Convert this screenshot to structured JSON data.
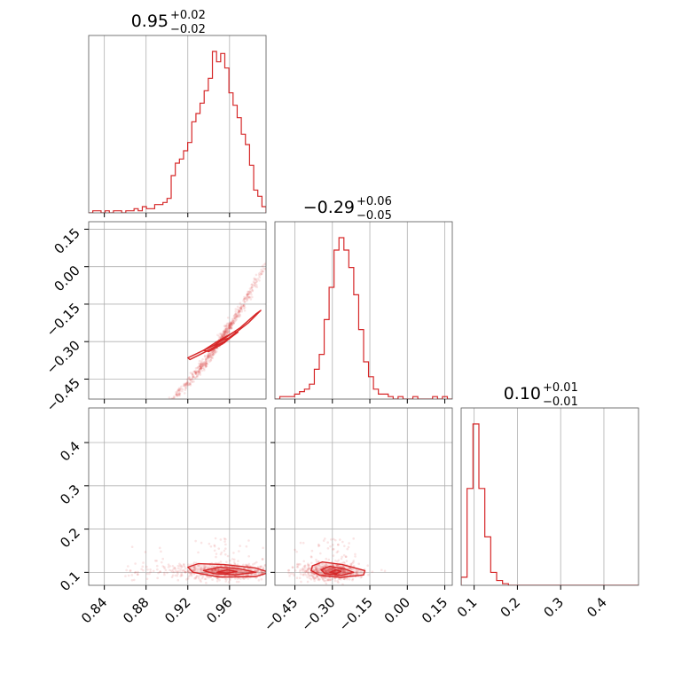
{
  "chart_data": {
    "type": "corner",
    "color": "#d62728",
    "grid": true,
    "parameters": [
      {
        "title": {
          "median": "0.95",
          "plus": "+0.02",
          "minus": "−0.02"
        },
        "range": [
          0.825,
          0.995
        ],
        "ticks": [
          0.84,
          0.88,
          0.92,
          0.96
        ],
        "tick_labels": [
          "0.84",
          "0.88",
          "0.92",
          "0.96"
        ]
      },
      {
        "title": {
          "median": "−0.29",
          "plus": "+0.06",
          "minus": "−0.05"
        },
        "range": [
          -0.53,
          0.18
        ],
        "ticks": [
          -0.45,
          -0.3,
          -0.15,
          0.0,
          0.15
        ],
        "tick_labels": [
          "−0.45",
          "−0.30",
          "−0.15",
          "0.00",
          "0.15"
        ]
      },
      {
        "title": {
          "median": "0.10",
          "plus": "+0.01",
          "minus": "−0.01"
        },
        "range": [
          0.07,
          0.48
        ],
        "ticks": [
          0.1,
          0.2,
          0.3,
          0.4
        ],
        "tick_labels": [
          "0.1",
          "0.2",
          "0.3",
          "0.4"
        ]
      }
    ],
    "histograms": [
      {
        "param": 0,
        "bins": [
          0.825,
          0.995
        ],
        "counts": [
          0,
          1,
          1,
          0,
          1,
          0,
          1,
          1,
          0,
          1,
          1,
          2,
          1,
          3,
          2,
          2,
          4,
          4,
          5,
          7,
          18,
          24,
          26,
          30,
          34,
          44,
          48,
          53,
          59,
          65,
          78,
          73,
          77,
          70,
          58,
          52,
          46,
          38,
          33,
          23,
          11,
          8,
          3
        ]
      },
      {
        "param": 1,
        "bins": [
          -0.53,
          0.18
        ],
        "counts": [
          0,
          1,
          1,
          1,
          2,
          3,
          4,
          6,
          12,
          18,
          32,
          45,
          60,
          65,
          60,
          53,
          42,
          28,
          15,
          9,
          4,
          2,
          2,
          1,
          0,
          1,
          0,
          0,
          1,
          0,
          0,
          0,
          1,
          0,
          1,
          0
        ]
      },
      {
        "param": 2,
        "bins": [
          0.07,
          0.48
        ],
        "counts": [
          5,
          60,
          100,
          60,
          30,
          8,
          3,
          1,
          0,
          0,
          0,
          0,
          0,
          0,
          0,
          0,
          0,
          0,
          0,
          0,
          0,
          0,
          0,
          0,
          0,
          0,
          0,
          0,
          0,
          0
        ]
      }
    ],
    "pairs": [
      {
        "x_param": 0,
        "y_param": 1,
        "center": [
          0.949,
          -0.31
        ],
        "contours": [
          {
            "level": 1,
            "points": [
              [
                0.945,
                -0.315
              ],
              [
                0.952,
                -0.295
              ],
              [
                0.96,
                -0.285
              ],
              [
                0.955,
                -0.305
              ]
            ]
          },
          {
            "level": 2,
            "points": [
              [
                0.935,
                -0.335
              ],
              [
                0.948,
                -0.3
              ],
              [
                0.965,
                -0.26
              ],
              [
                0.968,
                -0.262
              ],
              [
                0.953,
                -0.31
              ],
              [
                0.94,
                -0.34
              ]
            ]
          },
          {
            "level": 3,
            "points": [
              [
                0.92,
                -0.365
              ],
              [
                0.945,
                -0.315
              ],
              [
                0.97,
                -0.245
              ],
              [
                0.985,
                -0.19
              ],
              [
                0.99,
                -0.175
              ],
              [
                0.978,
                -0.225
              ],
              [
                0.955,
                -0.3
              ],
              [
                0.935,
                -0.345
              ],
              [
                0.922,
                -0.372
              ]
            ]
          }
        ]
      },
      {
        "x_param": 0,
        "y_param": 2,
        "center": [
          0.955,
          0.101
        ],
        "contours": [
          {
            "level": 1,
            "points": [
              [
                0.948,
                0.1
              ],
              [
                0.958,
                0.106
              ],
              [
                0.967,
                0.102
              ],
              [
                0.958,
                0.098
              ]
            ]
          },
          {
            "level": 2,
            "points": [
              [
                0.935,
                0.104
              ],
              [
                0.95,
                0.112
              ],
              [
                0.97,
                0.108
              ],
              [
                0.985,
                0.1
              ],
              [
                0.965,
                0.094
              ],
              [
                0.945,
                0.097
              ]
            ]
          },
          {
            "level": 3,
            "points": [
              [
                0.92,
                0.112
              ],
              [
                0.93,
                0.12
              ],
              [
                0.955,
                0.118
              ],
              [
                0.985,
                0.11
              ],
              [
                0.998,
                0.1
              ],
              [
                0.985,
                0.09
              ],
              [
                0.95,
                0.089
              ],
              [
                0.925,
                0.1
              ]
            ]
          }
        ]
      },
      {
        "x_param": 1,
        "y_param": 2,
        "center": [
          -0.29,
          0.101
        ],
        "contours": [
          {
            "level": 1,
            "points": [
              [
                -0.31,
                0.1
              ],
              [
                -0.285,
                0.106
              ],
              [
                -0.265,
                0.102
              ],
              [
                -0.285,
                0.097
              ]
            ]
          },
          {
            "level": 2,
            "points": [
              [
                -0.345,
                0.106
              ],
              [
                -0.31,
                0.114
              ],
              [
                -0.25,
                0.108
              ],
              [
                -0.215,
                0.1
              ],
              [
                -0.265,
                0.093
              ],
              [
                -0.33,
                0.097
              ]
            ]
          },
          {
            "level": 3,
            "points": [
              [
                -0.38,
                0.115
              ],
              [
                -0.34,
                0.124
              ],
              [
                -0.26,
                0.118
              ],
              [
                -0.17,
                0.104
              ],
              [
                -0.175,
                0.094
              ],
              [
                -0.265,
                0.088
              ],
              [
                -0.35,
                0.093
              ],
              [
                -0.385,
                0.104
              ]
            ]
          }
        ]
      }
    ]
  }
}
